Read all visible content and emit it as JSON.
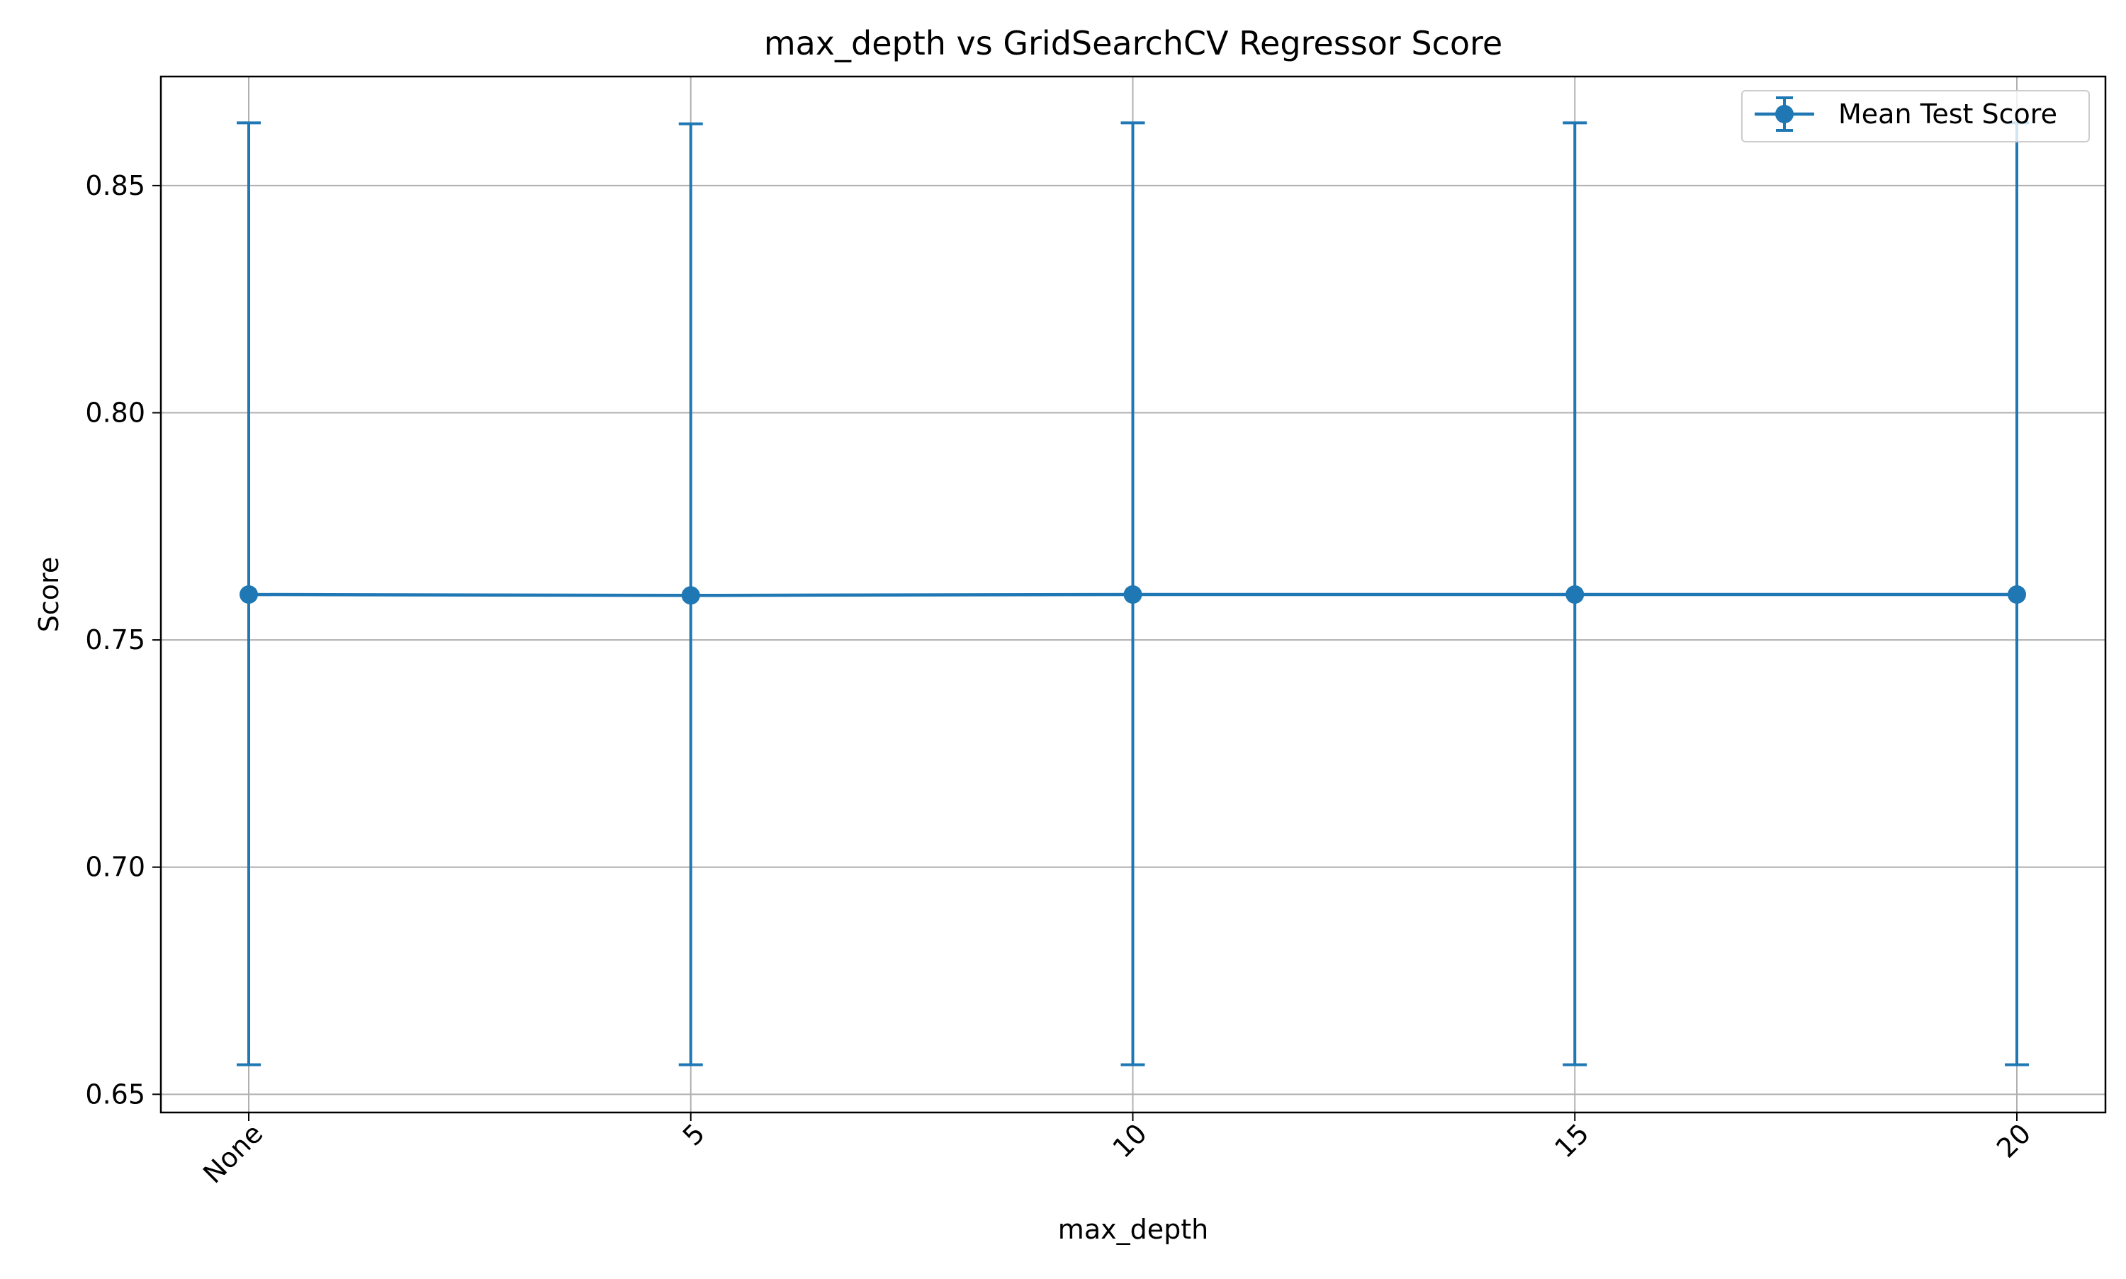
{
  "chart_data": {
    "type": "line",
    "title": "max_depth vs GridSearchCV Regressor Score",
    "xlabel": "max_depth",
    "ylabel": "Score",
    "categories": [
      "None",
      "5",
      "10",
      "15",
      "20"
    ],
    "series": [
      {
        "name": "Mean Test Score",
        "values": [
          0.76,
          0.7598,
          0.76,
          0.76,
          0.76
        ],
        "err_low": [
          0.6565,
          0.6565,
          0.6565,
          0.6565,
          0.6565
        ],
        "err_high": [
          0.8638,
          0.8636,
          0.8638,
          0.8638,
          0.8638
        ],
        "color": "#1f77b4",
        "marker": "circle",
        "errorbars": true
      }
    ],
    "ylim": [
      0.646,
      0.874
    ],
    "yticks": [
      0.65,
      0.7,
      0.75,
      0.8,
      0.85
    ],
    "ytick_labels": [
      "0.65",
      "0.70",
      "0.75",
      "0.80",
      "0.85"
    ],
    "grid": true,
    "legend": "top-right",
    "xtick_rotation_deg": 45
  }
}
